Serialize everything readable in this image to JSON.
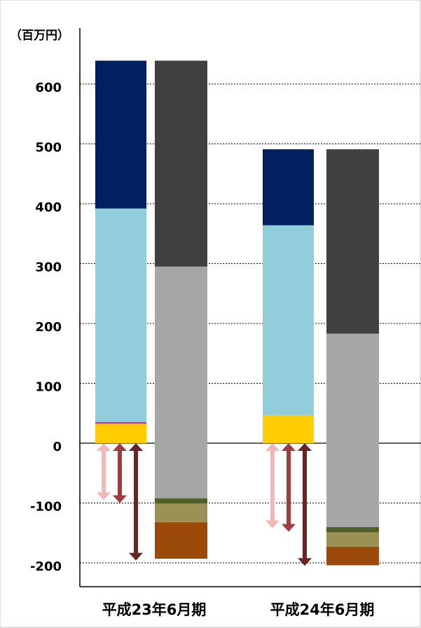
{
  "chart_data": {
    "type": "bar",
    "unit_label": "（百万円）",
    "y_ticks": [
      600,
      500,
      400,
      300,
      200,
      100,
      0,
      -100,
      -200
    ],
    "ylim": [
      -240,
      640
    ],
    "grid": true,
    "categories": [
      "平成23年6月期",
      "平成24年6月期"
    ],
    "stacks": [
      {
        "category": "平成23年6月期",
        "column": "left",
        "segments": [
          {
            "from": 0,
            "to": 33,
            "color": "#ffcc00"
          },
          {
            "from": 33,
            "to": 35,
            "color": "#e0007a"
          },
          {
            "from": 35,
            "to": 392,
            "color": "#92cddc"
          },
          {
            "from": 392,
            "to": 639,
            "color": "#002060"
          }
        ]
      },
      {
        "category": "平成23年6月期",
        "column": "right",
        "segments": [
          {
            "from": -193,
            "to": -132,
            "color": "#9c4a0a"
          },
          {
            "from": -132,
            "to": -101,
            "color": "#9b9155"
          },
          {
            "from": -101,
            "to": -92,
            "color": "#4f6128"
          },
          {
            "from": -92,
            "to": 295,
            "color": "#a6a6a6"
          },
          {
            "from": 295,
            "to": 639,
            "color": "#404040"
          }
        ]
      },
      {
        "category": "平成24年6月期",
        "column": "left",
        "segments": [
          {
            "from": 0,
            "to": 47,
            "color": "#ffcc00"
          },
          {
            "from": 47,
            "to": 364,
            "color": "#92cddc"
          },
          {
            "from": 364,
            "to": 491,
            "color": "#002060"
          }
        ]
      },
      {
        "category": "平成24年6月期",
        "column": "right",
        "segments": [
          {
            "from": -204,
            "to": -173,
            "color": "#9c4a0a"
          },
          {
            "from": -173,
            "to": -149,
            "color": "#9b9155"
          },
          {
            "from": -149,
            "to": -140,
            "color": "#4f6128"
          },
          {
            "from": -140,
            "to": 183,
            "color": "#a6a6a6"
          },
          {
            "from": 183,
            "to": 491,
            "color": "#404040"
          }
        ]
      }
    ],
    "arrows": [
      {
        "category": "平成23年6月期",
        "slot": 0,
        "from": 0,
        "to": -95,
        "color": "#f2b6b6"
      },
      {
        "category": "平成23年6月期",
        "slot": 1,
        "from": 0,
        "to": -100,
        "color": "#a03c3c"
      },
      {
        "category": "平成23年6月期",
        "slot": 2,
        "from": 0,
        "to": -196,
        "color": "#6b2424"
      },
      {
        "category": "平成24年6月期",
        "slot": 0,
        "from": 0,
        "to": -142,
        "color": "#f2b6b6"
      },
      {
        "category": "平成24年6月期",
        "slot": 1,
        "from": 0,
        "to": -148,
        "color": "#a03c3c"
      },
      {
        "category": "平成24年6月期",
        "slot": 2,
        "from": 0,
        "to": -205,
        "color": "#6b2424"
      }
    ]
  }
}
